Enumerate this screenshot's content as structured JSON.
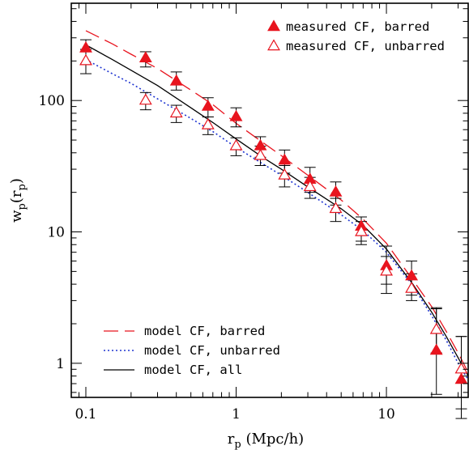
{
  "chart_data": {
    "type": "scatter",
    "xscale": "log",
    "yscale": "log",
    "xlim": [
      0.08,
      35
    ],
    "ylim": [
      0.55,
      550
    ],
    "xticks": [
      {
        "value": 0.1,
        "label": "0.1"
      },
      {
        "value": 1,
        "label": "1"
      },
      {
        "value": 10,
        "label": "10"
      }
    ],
    "yticks": [
      {
        "value": 1,
        "label": "1"
      },
      {
        "value": 10,
        "label": "10"
      },
      {
        "value": 100,
        "label": "100"
      }
    ],
    "xlabel": {
      "main": "r",
      "sub": "p",
      "unit": " (Mpc/h)"
    },
    "ylabel": {
      "main": "w",
      "sub1": "p",
      "mid": "(r",
      "sub2": "p",
      "end": ")"
    },
    "grid": false,
    "legend_top": {
      "placement": "top-right",
      "entries": [
        {
          "series": "barred",
          "label": "measured CF, barred"
        },
        {
          "series": "unbarred",
          "label": "measured CF, unbarred"
        }
      ]
    },
    "legend_bottom": {
      "placement": "bottom-left",
      "entries": [
        {
          "series": "model_barred",
          "label": "model CF, barred"
        },
        {
          "series": "model_unbarred",
          "label": "model CF, unbarred"
        },
        {
          "series": "model_all",
          "label": "model CF, all"
        }
      ]
    },
    "points": [
      {
        "key": "barred",
        "marker": "filled-triangle",
        "color": "#e8141e",
        "x": [
          0.1,
          0.25,
          0.4,
          0.65,
          1.0,
          1.45,
          2.1,
          3.1,
          4.6,
          6.8,
          10.0,
          14.7,
          21.5,
          31.5
        ],
        "y": [
          250,
          210,
          140,
          90,
          75,
          45,
          35,
          25,
          20,
          11,
          5.5,
          4.6,
          1.25,
          0.75
        ],
        "err_lo": [
          190,
          180,
          120,
          75,
          63,
          37,
          28,
          20,
          16,
          8.5,
          3.4,
          3.3,
          0.58,
          0.38
        ],
        "err_hi": [
          290,
          235,
          165,
          105,
          88,
          53,
          42,
          31,
          24,
          13,
          7.8,
          6.0,
          2.65,
          1.6
        ]
      },
      {
        "key": "unbarred",
        "marker": "open-triangle",
        "color": "#e8141e",
        "x": [
          0.1,
          0.25,
          0.4,
          0.65,
          1.0,
          1.45,
          2.1,
          3.1,
          4.6,
          6.8,
          10.0,
          14.7,
          21.5,
          31.5
        ],
        "y": [
          200,
          100,
          80,
          65,
          45,
          38,
          27,
          22,
          15,
          10,
          5.0,
          3.7,
          1.8,
          0.9
        ],
        "err_lo": [
          160,
          85,
          68,
          55,
          38,
          32,
          22,
          18,
          12,
          8,
          4.0,
          3.0,
          1.2,
          0.45
        ],
        "err_hi": [
          245,
          115,
          92,
          75,
          52,
          45,
          32,
          26,
          18,
          12,
          6.5,
          4.8,
          2.6,
          1.6
        ]
      }
    ],
    "series": [
      {
        "key": "model_barred",
        "dash": "18,8",
        "color": "#e8141e",
        "x": [
          0.1,
          0.15,
          0.2,
          0.3,
          0.5,
          0.7,
          1.0,
          1.5,
          2.0,
          3.0,
          5.0,
          7.0,
          10.0,
          15.0,
          20.0,
          25.0,
          30.0,
          35.0
        ],
        "y": [
          340,
          270,
          225,
          175,
          120,
          93,
          67,
          48,
          38,
          27,
          17.5,
          12.5,
          8.2,
          4.3,
          2.7,
          1.75,
          1.2,
          0.85
        ]
      },
      {
        "key": "model_unbarred",
        "dash": "2,3",
        "color": "#1f35d1",
        "x": [
          0.1,
          0.15,
          0.2,
          0.3,
          0.5,
          0.7,
          1.0,
          1.5,
          2.0,
          3.0,
          5.0,
          7.0,
          10.0,
          15.0,
          20.0,
          25.0,
          30.0,
          35.0
        ],
        "y": [
          205,
          160,
          135,
          103,
          73,
          58,
          44,
          33,
          27,
          20,
          13.5,
          10.2,
          7.0,
          3.9,
          2.3,
          1.5,
          1.0,
          0.75
        ]
      },
      {
        "key": "model_all",
        "dash": "",
        "color": "#000000",
        "x": [
          0.1,
          0.15,
          0.2,
          0.3,
          0.5,
          0.7,
          1.0,
          1.5,
          2.0,
          3.0,
          5.0,
          7.0,
          10.0,
          15.0,
          20.0,
          25.0,
          30.0,
          35.0
        ],
        "y": [
          265,
          205,
          170,
          130,
          88,
          68,
          51,
          37,
          30,
          22,
          15,
          11.2,
          7.4,
          4.0,
          2.45,
          1.6,
          1.1,
          0.8
        ]
      }
    ]
  }
}
